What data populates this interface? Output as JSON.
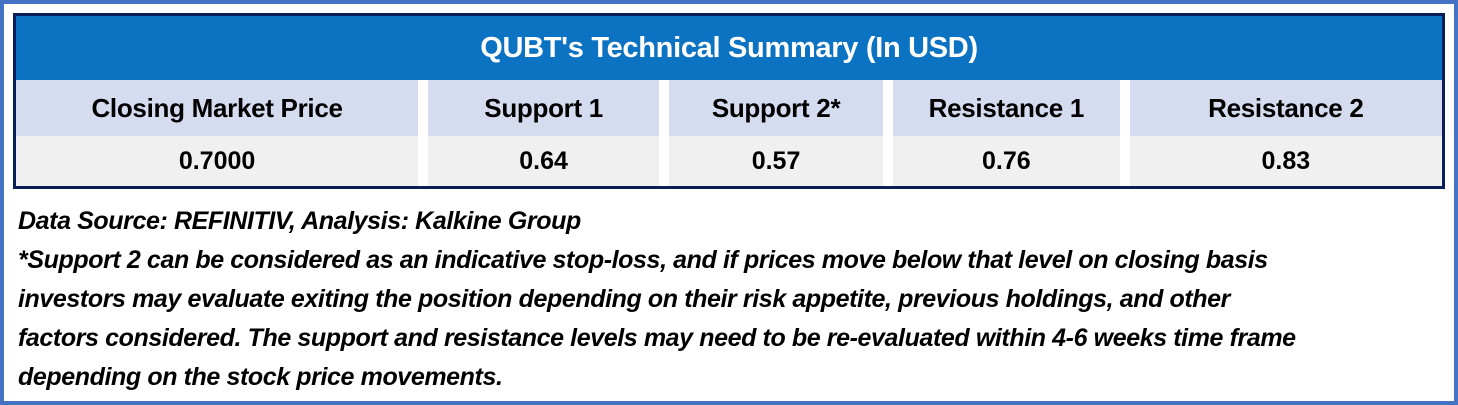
{
  "table": {
    "title": "QUBT's Technical Summary (In USD)",
    "columns": [
      {
        "label": "Closing Market Price",
        "value": "0.7000"
      },
      {
        "label": "Support 1",
        "value": "0.64"
      },
      {
        "label": "Support 2*",
        "value": "0.57"
      },
      {
        "label": "Resistance 1",
        "value": "0.76"
      },
      {
        "label": "Resistance 2",
        "value": "0.83"
      }
    ]
  },
  "notes": {
    "source_line": "Data Source: REFINITIV, Analysis: Kalkine Group",
    "disclaimer_lines": [
      "*Support 2 can be considered as an indicative stop-loss, and if prices move below that level on closing basis",
      "investors may evaluate exiting the position depending on their risk appetite, previous holdings, and other",
      "factors considered. The support and resistance levels may need to be re-evaluated within 4-6 weeks time frame",
      "depending on the stock price movements."
    ]
  },
  "colors": {
    "frame-blue": "#4472C4",
    "navy": "#0A1F5A",
    "title-blue": "#0C72C2",
    "header-row": "#D5DCEF",
    "value-row": "#F0F0F0"
  }
}
